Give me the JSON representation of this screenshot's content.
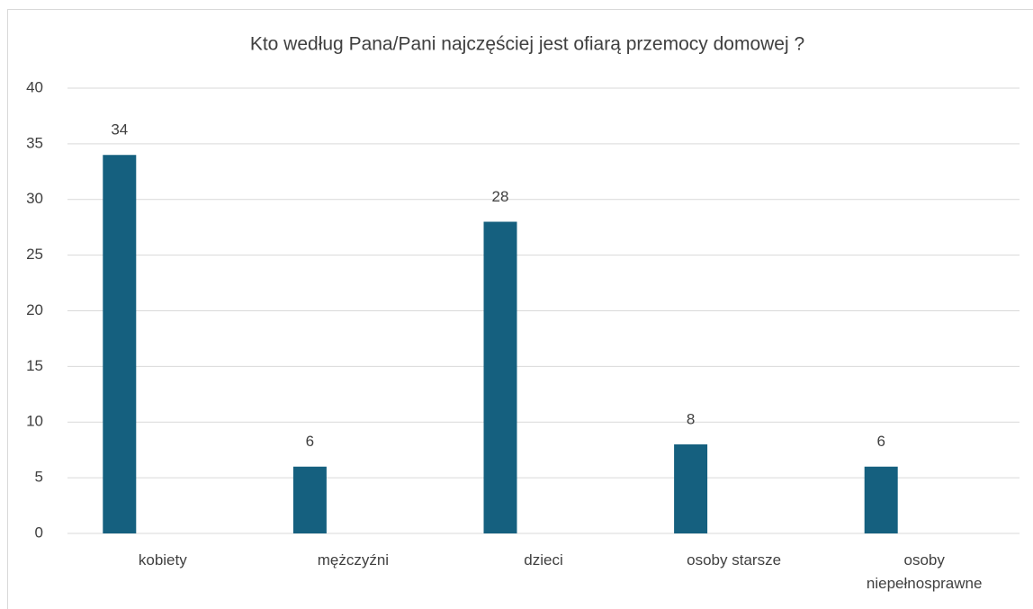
{
  "chart_data": {
    "type": "bar",
    "title": "Kto według Pana/Pani najczęściej jest ofiarą przemocy domowej ?",
    "categories": [
      "kobiety",
      "mężczyźni",
      "dzieci",
      "osoby starsze",
      "osoby niepełnosprawne"
    ],
    "values": [
      34,
      6,
      28,
      8,
      6
    ],
    "color": "#15607f",
    "ylim": [
      0,
      40
    ],
    "yticks": [
      0,
      5,
      10,
      15,
      20,
      25,
      30,
      35,
      40
    ],
    "grid": true
  }
}
